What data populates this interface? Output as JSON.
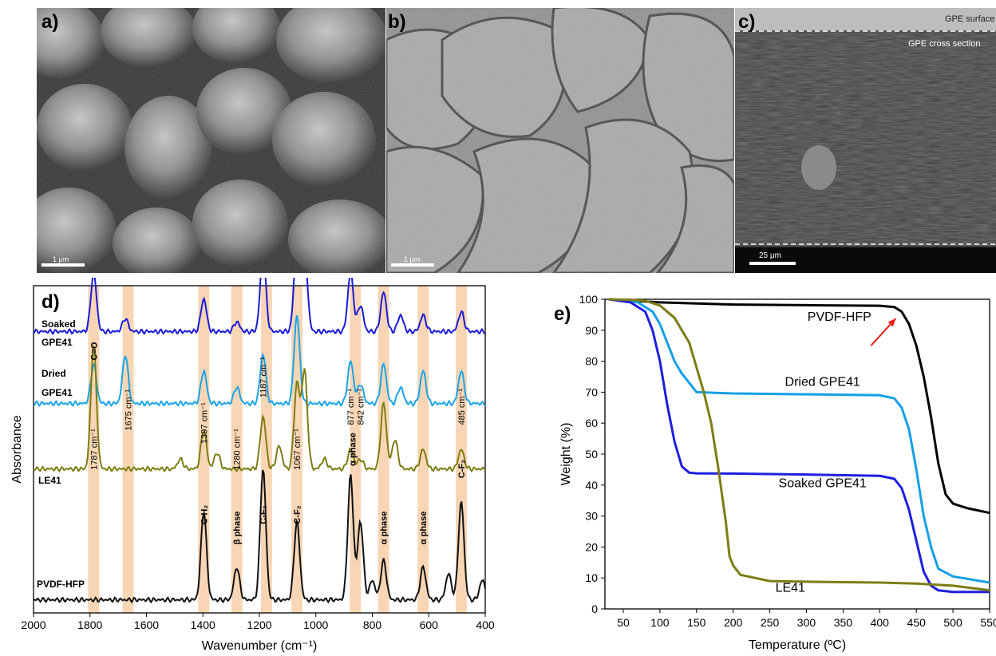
{
  "panels": {
    "a": {
      "label": "a)",
      "scale_bar": "1 μm"
    },
    "b": {
      "label": "b)",
      "scale_bar": "1 μm"
    },
    "c": {
      "label": "c)",
      "scale_bar": "25 μm",
      "surface_label": "GPE surface",
      "cross_label": "GPE cross section"
    },
    "d": {
      "label": "d)"
    },
    "e": {
      "label": "e)"
    }
  },
  "chart_data": [
    {
      "id": "d",
      "type": "line",
      "xlabel": "Wavenumber (cm⁻¹)",
      "ylabel": "Absorbance",
      "xlim": [
        2000,
        400
      ],
      "x_ticks": [
        "2000",
        "1800",
        "1600",
        "1400",
        "1200",
        "1000",
        "800",
        "600",
        "400"
      ],
      "series_labels": [
        "Soaked",
        "GPE41",
        "Dried",
        "GPE41",
        "LE41",
        "PVDF-HFP"
      ],
      "series": [
        {
          "name": "Soaked GPE41",
          "color": "#1a1adb",
          "offset": 0.86,
          "peaks": [
            [
              1787,
              0.18
            ],
            [
              1675,
              0.04
            ],
            [
              1397,
              0.1
            ],
            [
              1280,
              0.03
            ],
            [
              1187,
              0.24
            ],
            [
              1067,
              0.28
            ],
            [
              1040,
              0.26
            ],
            [
              877,
              0.18
            ],
            [
              842,
              0.08
            ],
            [
              760,
              0.12
            ],
            [
              700,
              0.05
            ],
            [
              620,
              0.05
            ],
            [
              485,
              0.06
            ]
          ]
        },
        {
          "name": "Dried GPE41",
          "color": "#19a3e8",
          "offset": 0.64,
          "peaks": [
            [
              1787,
              0.12
            ],
            [
              1675,
              0.15
            ],
            [
              1397,
              0.1
            ],
            [
              1280,
              0.05
            ],
            [
              1187,
              0.15
            ],
            [
              1067,
              0.27
            ],
            [
              877,
              0.13
            ],
            [
              842,
              0.06
            ],
            [
              760,
              0.12
            ],
            [
              700,
              0.05
            ],
            [
              620,
              0.1
            ],
            [
              485,
              0.1
            ]
          ]
        },
        {
          "name": "LE41",
          "color": "#7d7d14",
          "offset": 0.44,
          "peaks": [
            [
              1787,
              0.38
            ],
            [
              1480,
              0.03
            ],
            [
              1397,
              0.12
            ],
            [
              1350,
              0.05
            ],
            [
              1187,
              0.16
            ],
            [
              1130,
              0.07
            ],
            [
              1067,
              0.26
            ],
            [
              1040,
              0.3
            ],
            [
              970,
              0.03
            ],
            [
              877,
              0.06
            ],
            [
              842,
              0.03
            ],
            [
              760,
              0.2
            ],
            [
              720,
              0.09
            ],
            [
              620,
              0.06
            ],
            [
              485,
              0.06
            ]
          ]
        },
        {
          "name": "PVDF-HFP",
          "color": "#111111",
          "offset": 0.04,
          "peaks": [
            [
              1397,
              0.27
            ],
            [
              1280,
              0.1
            ],
            [
              1187,
              0.4
            ],
            [
              1067,
              0.24
            ],
            [
              877,
              0.38
            ],
            [
              842,
              0.24
            ],
            [
              800,
              0.06
            ],
            [
              760,
              0.12
            ],
            [
              620,
              0.1
            ],
            [
              530,
              0.08
            ],
            [
              485,
              0.3
            ],
            [
              410,
              0.06
            ]
          ]
        }
      ],
      "bands": [
        1787,
        1665,
        1397,
        1280,
        1175,
        1067,
        860,
        760,
        620,
        485
      ],
      "annotations": [
        {
          "text": "C=O",
          "x": 1787,
          "y": 0.8,
          "bold": true
        },
        {
          "text": "1787 cm⁻¹",
          "x": 1787,
          "y": 0.5,
          "bold": false
        },
        {
          "text": "1675 cm⁻¹",
          "x": 1665,
          "y": 0.62,
          "bold": false
        },
        {
          "text": "1397 cm⁻¹",
          "x": 1397,
          "y": 0.58,
          "bold": false
        },
        {
          "text": "1280 cm⁻¹",
          "x": 1280,
          "y": 0.5,
          "bold": false
        },
        {
          "text": "1187 cm⁻¹",
          "x": 1187,
          "y": 0.72,
          "bold": false
        },
        {
          "text": "1067 cm⁻¹",
          "x": 1067,
          "y": 0.5,
          "bold": false
        },
        {
          "text": "877 cm⁻¹",
          "x": 877,
          "y": 0.63,
          "bold": false
        },
        {
          "text": "842 cm⁻¹",
          "x": 842,
          "y": 0.63,
          "bold": false
        },
        {
          "text": "485 cm⁻¹",
          "x": 485,
          "y": 0.63,
          "bold": false
        },
        {
          "text": "α phase",
          "x": 870,
          "y": 0.5,
          "bold": true
        },
        {
          "text": "C-F₂",
          "x": 485,
          "y": 0.44,
          "bold": true
        },
        {
          "text": "C-H₂",
          "x": 1397,
          "y": 0.3,
          "bold": true
        },
        {
          "text": "β phase",
          "x": 1280,
          "y": 0.26,
          "bold": true
        },
        {
          "text": "C-F₃",
          "x": 1187,
          "y": 0.3,
          "bold": true
        },
        {
          "text": "C-F₂",
          "x": 1067,
          "y": 0.3,
          "bold": true
        },
        {
          "text": "α phase",
          "x": 760,
          "y": 0.26,
          "bold": true
        },
        {
          "text": "α phase",
          "x": 620,
          "y": 0.26,
          "bold": true
        }
      ]
    },
    {
      "id": "e",
      "type": "line",
      "xlabel": "Temperature (ºC)",
      "ylabel": "Weight (%)",
      "xlim": [
        25,
        550
      ],
      "ylim": [
        0,
        100
      ],
      "x_ticks": [
        50,
        100,
        150,
        200,
        250,
        300,
        350,
        400,
        450,
        500,
        550
      ],
      "y_ticks": [
        0,
        10,
        20,
        30,
        40,
        50,
        60,
        70,
        80,
        90,
        100
      ],
      "series": [
        {
          "name": "PVDF-HFP",
          "color": "#000000",
          "x": [
            30,
            100,
            200,
            300,
            400,
            420,
            430,
            440,
            450,
            460,
            470,
            480,
            490,
            500,
            520,
            550
          ],
          "y": [
            100,
            99,
            98.3,
            98.1,
            97.9,
            97.5,
            96,
            92,
            85,
            75,
            62,
            47,
            37,
            34,
            32.5,
            31
          ]
        },
        {
          "name": "Dried GPE41",
          "color": "#14a0e6",
          "x": [
            30,
            70,
            90,
            100,
            110,
            120,
            130,
            150,
            200,
            300,
            400,
            420,
            430,
            440,
            450,
            460,
            470,
            480,
            500,
            550
          ],
          "y": [
            100,
            99,
            96,
            92,
            86,
            80,
            76,
            70,
            69.6,
            69.3,
            69,
            68,
            65,
            58,
            45,
            30,
            20,
            13,
            10.5,
            8.5
          ]
        },
        {
          "name": "Soaked GPE41",
          "color": "#1e1ee0",
          "x": [
            30,
            60,
            80,
            90,
            100,
            110,
            120,
            130,
            140,
            150,
            200,
            300,
            400,
            420,
            430,
            440,
            450,
            460,
            470,
            480,
            500,
            550
          ],
          "y": [
            100,
            99,
            96,
            90,
            80,
            66,
            54,
            46,
            44,
            43.8,
            43.7,
            43.4,
            43,
            42,
            39,
            32,
            22,
            12,
            7.5,
            6,
            5.5,
            5.5
          ]
        },
        {
          "name": "LE41",
          "color": "#7d7d14",
          "x": [
            30,
            60,
            80,
            100,
            120,
            140,
            160,
            170,
            180,
            190,
            195,
            200,
            210,
            250,
            300,
            400,
            450,
            500,
            550
          ],
          "y": [
            100,
            99.8,
            99.5,
            98,
            94,
            86,
            70,
            60,
            45,
            28,
            17,
            14,
            11,
            9,
            8.8,
            8.5,
            8.2,
            7.5,
            6
          ]
        }
      ],
      "legend_labels": [
        {
          "text": "PVDF-HFP",
          "x": 345,
          "y": 93
        },
        {
          "text": "Dried GPE41",
          "x": 322,
          "y": 72
        },
        {
          "text": "Soaked GPE41",
          "x": 322,
          "y": 39.3
        },
        {
          "text": "LE41",
          "x": 278,
          "y": 5.5
        }
      ],
      "arrow": {
        "from": [
          388,
          85
        ],
        "to": [
          422,
          93.8
        ],
        "color": "#ee1c1c"
      }
    }
  ]
}
